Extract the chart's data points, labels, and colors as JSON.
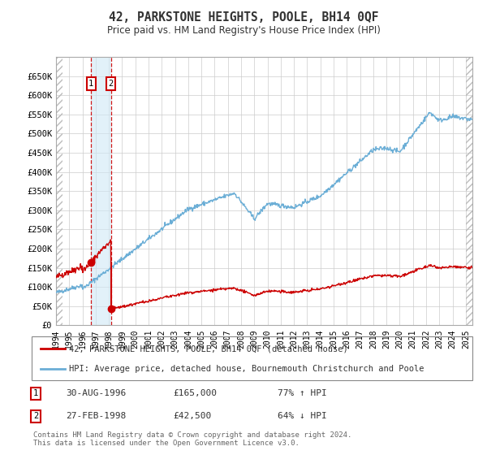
{
  "title": "42, PARKSTONE HEIGHTS, POOLE, BH14 0QF",
  "subtitle": "Price paid vs. HM Land Registry's House Price Index (HPI)",
  "legend_line1": "42, PARKSTONE HEIGHTS, POOLE, BH14 0QF (detached house)",
  "legend_line2": "HPI: Average price, detached house, Bournemouth Christchurch and Poole",
  "transaction1_date": "30-AUG-1996",
  "transaction1_price": "£165,000",
  "transaction1_hpi": "77% ↑ HPI",
  "transaction1_year": 1996.66,
  "transaction1_value": 165000,
  "transaction2_date": "27-FEB-1998",
  "transaction2_price": "£42,500",
  "transaction2_hpi": "64% ↓ HPI",
  "transaction2_year": 1998.16,
  "transaction2_value": 42500,
  "footer": "Contains HM Land Registry data © Crown copyright and database right 2024.\nThis data is licensed under the Open Government Licence v3.0.",
  "hpi_color": "#6baed6",
  "price_color": "#cc0000",
  "background_color": "#ffffff",
  "grid_color": "#cccccc"
}
